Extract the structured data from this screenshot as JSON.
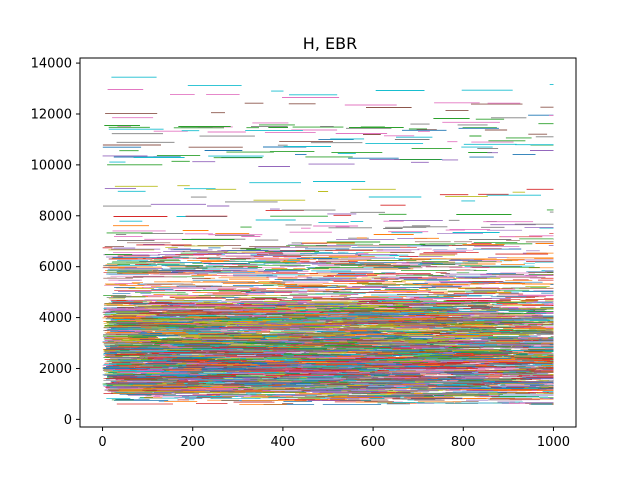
{
  "chart_data": {
    "type": "line",
    "title": "H, EBR",
    "xlabel": "",
    "ylabel": "",
    "xlim": [
      -50,
      1050
    ],
    "ylim": [
      -300,
      14200
    ],
    "xticks": [
      0,
      200,
      400,
      600,
      800,
      1000
    ],
    "yticks": [
      0,
      2000,
      4000,
      6000,
      8000,
      10000,
      12000,
      14000
    ],
    "grid": false,
    "legend": "none",
    "series_description": {
      "series_count": 600,
      "x_range": [
        0,
        1000
      ],
      "bulk_range": [
        800,
        6600
      ],
      "dense_core": [
        1000,
        4500
      ],
      "outlier_max": 13500
    },
    "colors": [
      "#1f77b4",
      "#ff7f0e",
      "#2ca02c",
      "#d62728",
      "#9467bd",
      "#8c564b",
      "#e377c2",
      "#7f7f7f",
      "#bcbd22",
      "#17becf"
    ]
  }
}
